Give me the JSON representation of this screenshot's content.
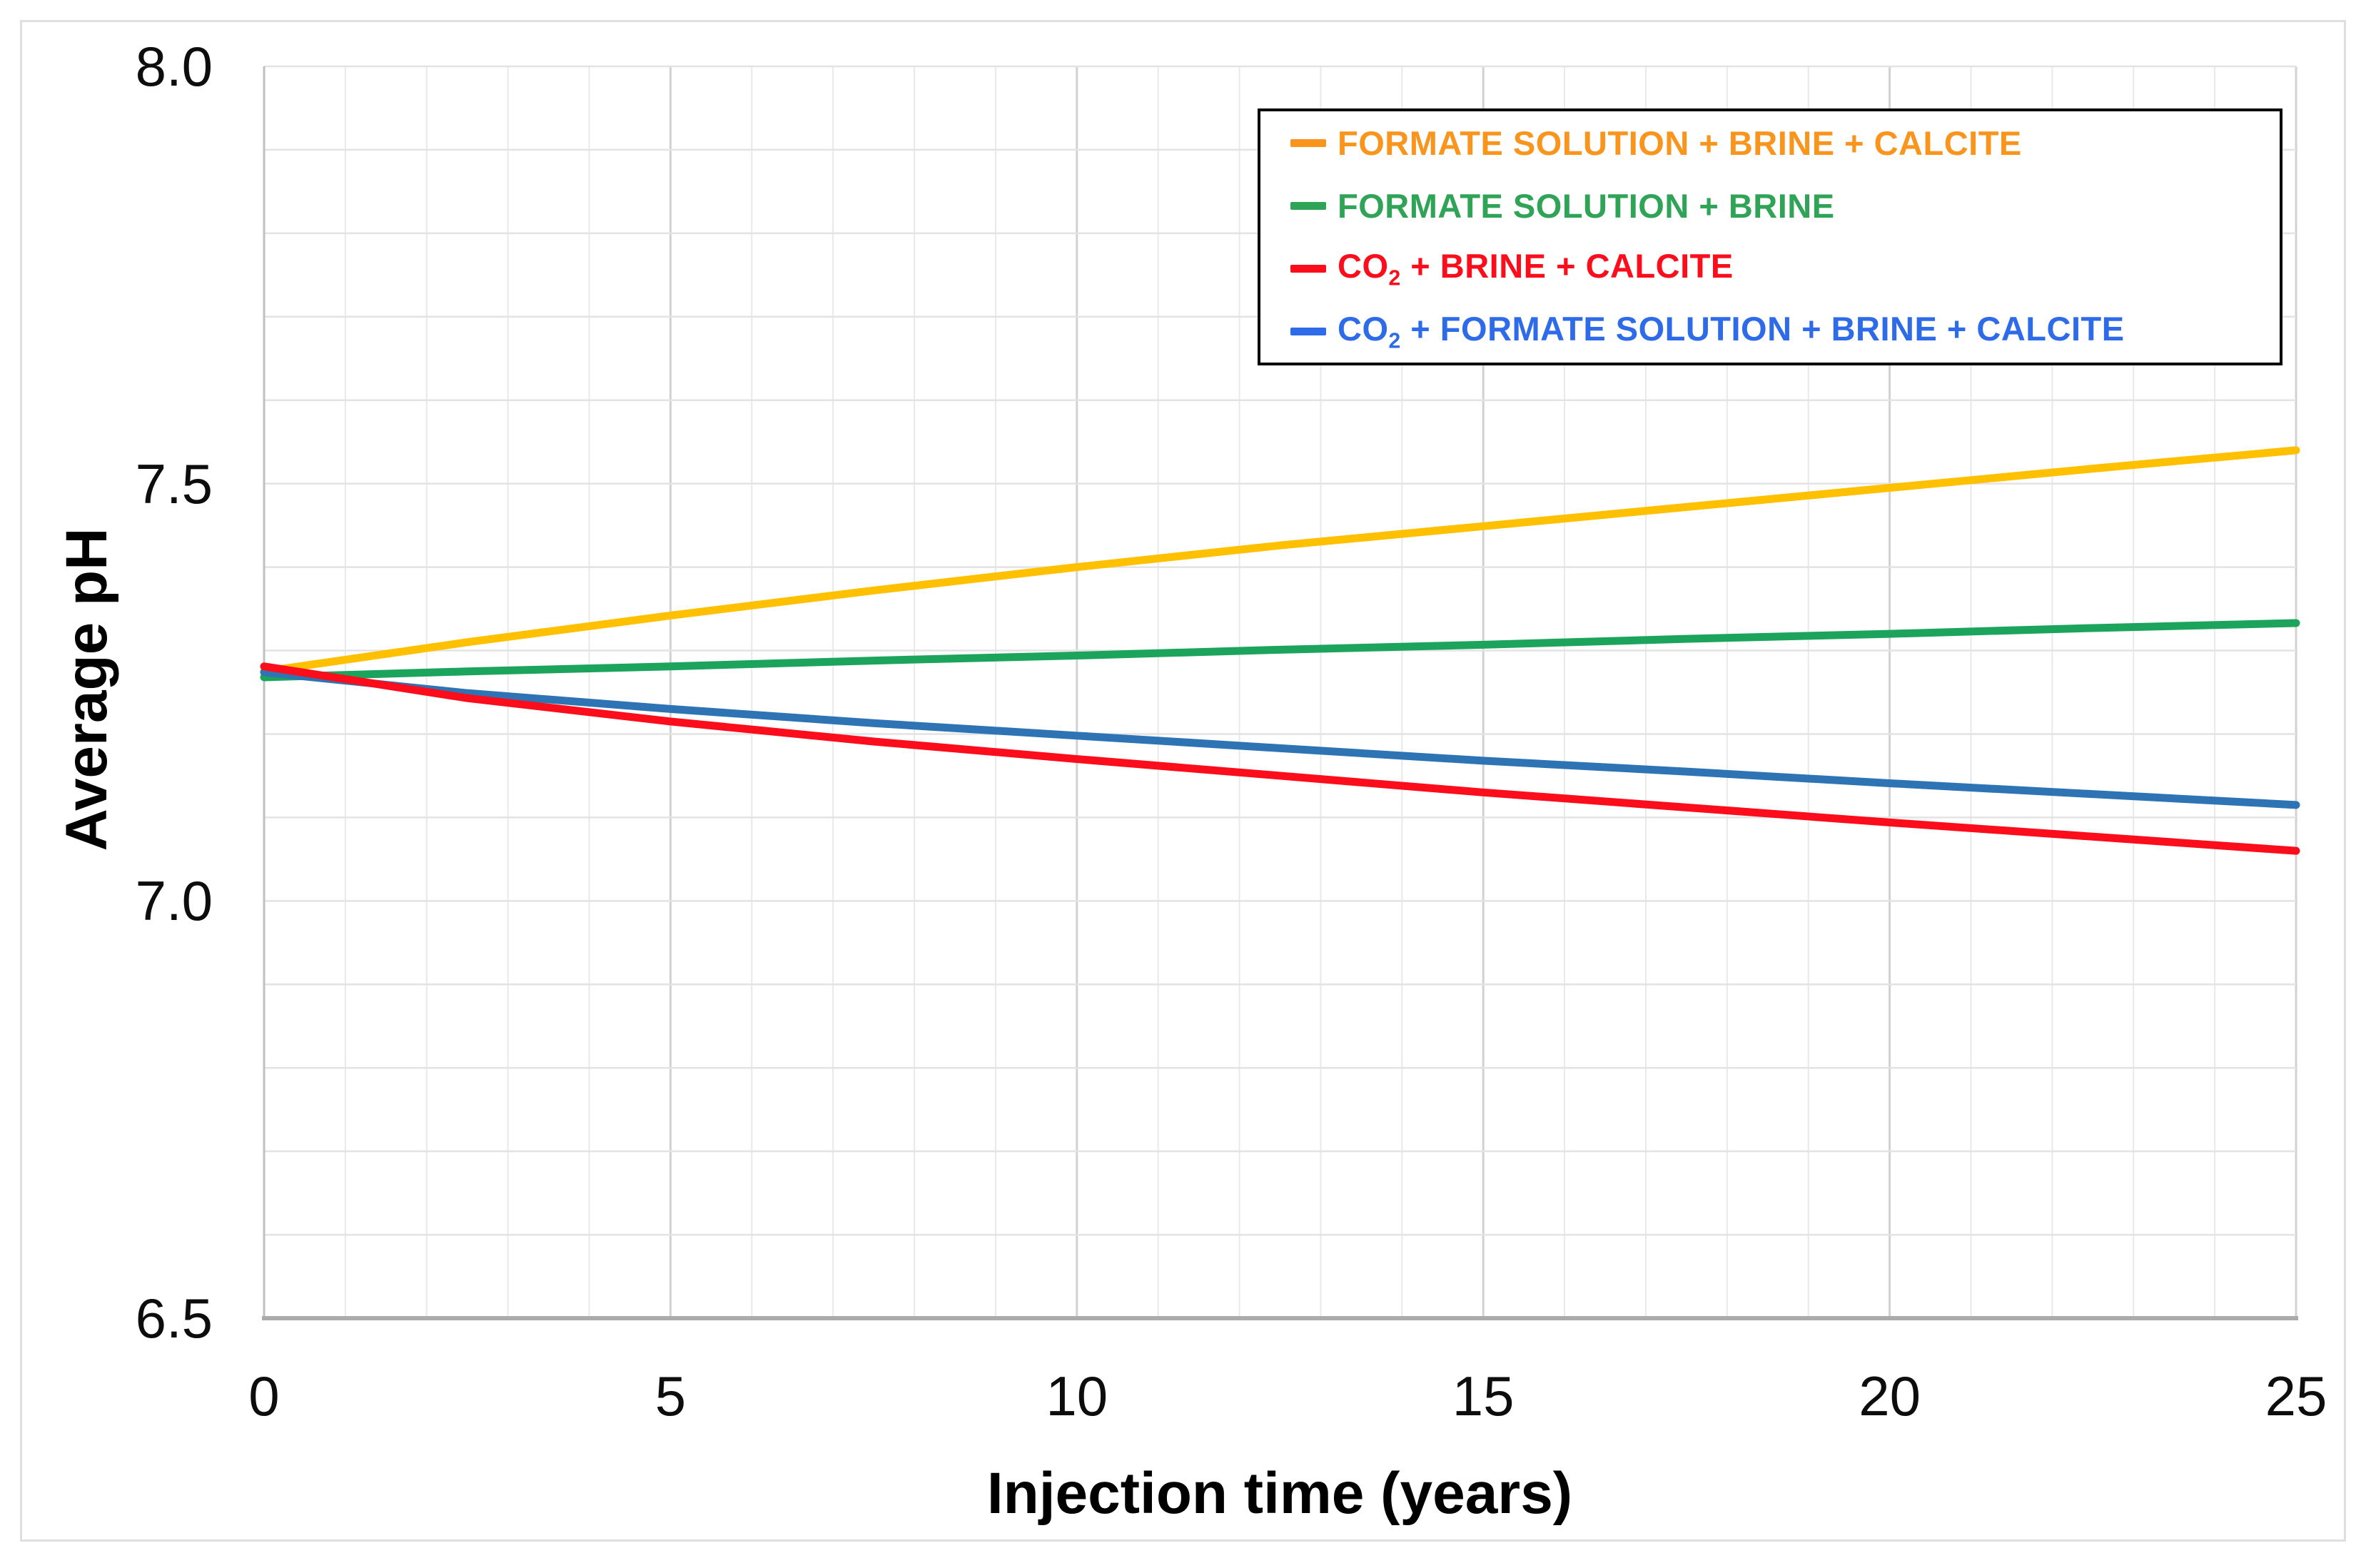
{
  "figure": {
    "background": "#FFFFFF",
    "border_color": "#DFDFDF"
  },
  "x_axis": {
    "title": "Injection time (years)",
    "tick_labels": [
      "0",
      "5",
      "10",
      "15",
      "20",
      "25"
    ],
    "tick_values": [
      0,
      5,
      10,
      15,
      20,
      25
    ]
  },
  "y_axis": {
    "title": "Average pH",
    "tick_labels": [
      "8.0",
      "7.5",
      "7.0",
      "6.5"
    ],
    "tick_values": [
      8.0,
      7.5,
      7.0,
      6.5
    ]
  },
  "legend": {
    "border_color": "#000000",
    "items": [
      {
        "pre": "",
        "sub": "",
        "rest": "FORMATE SOLUTION + BRINE + CALCITE",
        "color": "#F9951D"
      },
      {
        "pre": "",
        "sub": "",
        "rest": "FORMATE SOLUTION + BRINE",
        "color": "#2FA456"
      },
      {
        "pre": "CO",
        "sub": "2",
        "rest": " + BRINE + CALCITE",
        "color": "#FB0D1B"
      },
      {
        "pre": "CO",
        "sub": "2",
        "rest": " + FORMATE SOLUTION + BRINE + CALCITE",
        "color": "#2E6BE9"
      }
    ]
  },
  "chart_data": {
    "type": "line",
    "title": "",
    "xlabel": "Injection time (years)",
    "ylabel": "Average pH",
    "xlim": [
      0,
      25
    ],
    "ylim": [
      6.5,
      8.0
    ],
    "x_tick_step": 5,
    "y_tick_step": 0.5,
    "minor_grid_x_step": 1,
    "minor_grid_y_step": 0.1,
    "grid": true,
    "legend_position": "top-right",
    "x": [
      0,
      2.5,
      5,
      7.5,
      10,
      12.5,
      15,
      17.5,
      20,
      22.5,
      25
    ],
    "series": [
      {
        "name": "FORMATE SOLUTION + BRINE + CALCITE",
        "color": "#FFC000",
        "values": [
          7.275,
          7.31,
          7.342,
          7.372,
          7.4,
          7.426,
          7.449,
          7.472,
          7.495,
          7.518,
          7.54
        ]
      },
      {
        "name": "FORMATE SOLUTION + BRINE",
        "color": "#1CA45C",
        "values": [
          7.268,
          7.275,
          7.281,
          7.288,
          7.294,
          7.301,
          7.307,
          7.314,
          7.32,
          7.327,
          7.333
        ]
      },
      {
        "name": "CO2 + FORMATE SOLUTION + BRINE + CALCITE",
        "color": "#2E74B5",
        "values": [
          7.274,
          7.249,
          7.23,
          7.213,
          7.198,
          7.183,
          7.168,
          7.155,
          7.141,
          7.128,
          7.115
        ]
      },
      {
        "name": "CO2 + BRINE + CALCITE",
        "color": "#FB0D1B",
        "values": [
          7.281,
          7.243,
          7.215,
          7.191,
          7.17,
          7.15,
          7.13,
          7.112,
          7.094,
          7.077,
          7.06
        ]
      }
    ]
  }
}
